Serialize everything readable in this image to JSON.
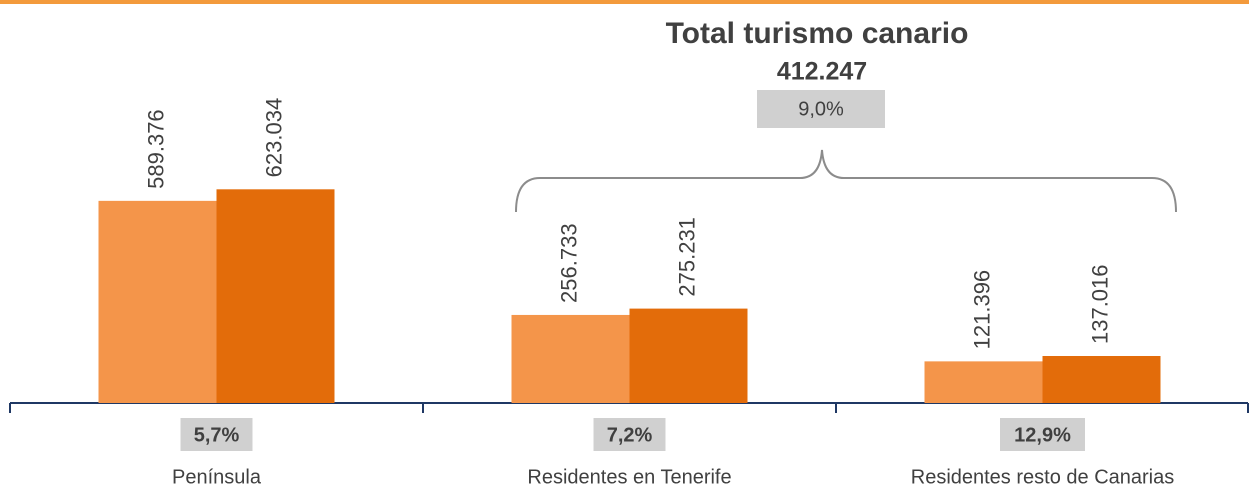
{
  "chart_data": {
    "type": "bar",
    "title": "Total turismo canario",
    "total": {
      "value": 412247,
      "label": "412.247"
    },
    "total_change": {
      "value": 9.0,
      "label": "9,0%"
    },
    "categories": [
      "Península",
      "Residentes en Tenerife",
      "Residentes resto de Canarias"
    ],
    "changes": [
      {
        "value": 5.7,
        "label": "5,7%"
      },
      {
        "value": 7.2,
        "label": "7,2%"
      },
      {
        "value": 12.9,
        "label": "12,9%"
      }
    ],
    "series": [
      {
        "color": "#f4954a",
        "values": [
          589376,
          256733,
          121396
        ],
        "value_labels": [
          "589.376",
          "256.733",
          "121.396"
        ]
      },
      {
        "color": "#e36c0a",
        "values": [
          623034,
          275231,
          137016
        ],
        "value_labels": [
          "623.034",
          "275.231",
          "137.016"
        ]
      }
    ],
    "ylim": [
      0,
      1175000
    ]
  }
}
